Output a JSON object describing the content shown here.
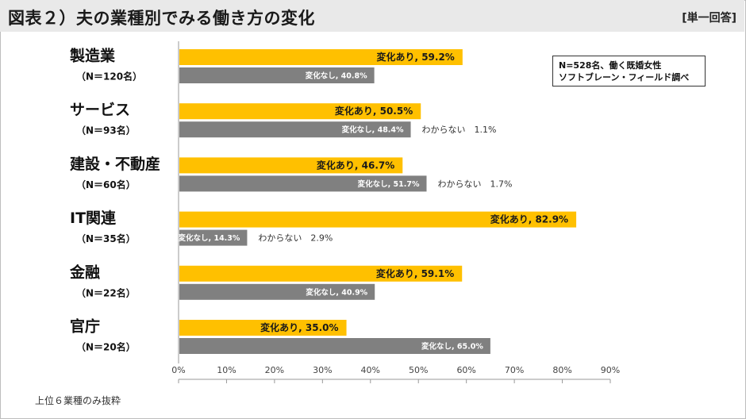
{
  "header": {
    "title": "図表２）夫の業種別でみる働き方の変化",
    "unit": "[単一回答]"
  },
  "note": {
    "line1": "N=528名、働く既婚女性",
    "line2": "ソフトブレーン・フィールド調べ"
  },
  "footnote": "上位６業種のみ抜粋",
  "colors": {
    "changed": "#FFC000",
    "unchanged": "#808080",
    "axis": "#999999"
  },
  "chart_data": {
    "type": "bar",
    "orientation": "horizontal",
    "title": "夫の業種別でみる働き方の変化",
    "categories": [
      {
        "name": "製造業",
        "n": "（N＝120名）"
      },
      {
        "name": "サービス",
        "n": "（N＝93名）"
      },
      {
        "name": "建設・不動産",
        "n": "（N＝60名）"
      },
      {
        "name": "IT関連",
        "n": "（N＝35名）"
      },
      {
        "name": "金融",
        "n": "（N＝22名）"
      },
      {
        "name": "官庁",
        "n": "（N＝20名）"
      }
    ],
    "series": [
      {
        "name": "変化あり",
        "values": [
          59.2,
          50.5,
          46.7,
          82.9,
          59.1,
          35.0
        ],
        "labels": [
          "変化あり, 59.2%",
          "変化あり, 50.5%",
          "変化あり, 46.7%",
          "変化あり, 82.9%",
          "変化あり, 59.1%",
          "変化あり, 35.0%"
        ]
      },
      {
        "name": "変化なし",
        "values": [
          40.8,
          48.4,
          51.7,
          14.3,
          40.9,
          65.0
        ],
        "labels": [
          "変化なし, 40.8%",
          "変化なし, 48.4%",
          "変化なし, 51.7%",
          "変化なし, 14.3%",
          "変化なし, 40.9%",
          "変化なし, 65.0%"
        ]
      },
      {
        "name": "わからない",
        "values": [
          null,
          1.1,
          1.7,
          2.9,
          null,
          null
        ],
        "labels": [
          null,
          "わからない　1.1%",
          "わからない　1.7%",
          "わからない　2.9%",
          null,
          null
        ]
      }
    ],
    "xlim": [
      0,
      90
    ],
    "xticks": [
      "0%",
      "10%",
      "20%",
      "30%",
      "40%",
      "50%",
      "60%",
      "70%",
      "80%",
      "90%"
    ],
    "xlabel": "",
    "ylabel": ""
  }
}
